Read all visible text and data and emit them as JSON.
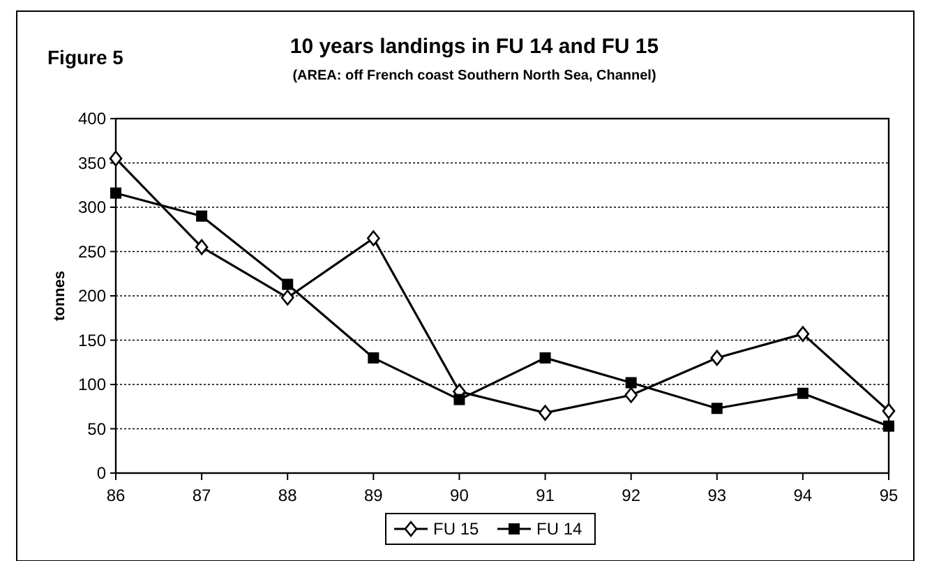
{
  "chart_data": {
    "type": "line",
    "title": "10 years landings in FU 14 and FU 15",
    "subtitle": "(AREA: off French coast Southern North Sea, Channel)",
    "ylabel": "tonnes",
    "annotations": [
      "Figure 5"
    ],
    "categories": [
      "86",
      "87",
      "88",
      "89",
      "90",
      "91",
      "92",
      "93",
      "94",
      "95"
    ],
    "series": [
      {
        "name": "FU 15",
        "color": "#000000",
        "marker": "diamond",
        "values": [
          355,
          255,
          198,
          265,
          92,
          68,
          88,
          130,
          157,
          70
        ]
      },
      {
        "name": "FU 14",
        "color": "#000000",
        "marker": "square",
        "values": [
          316,
          290,
          213,
          130,
          83,
          130,
          102,
          73,
          90,
          53
        ]
      }
    ],
    "ylim": [
      0,
      400
    ],
    "yticks": [
      0,
      50,
      100,
      150,
      200,
      250,
      300,
      350,
      400
    ],
    "grid": "y",
    "legend": "bottom",
    "line_style": "solid"
  }
}
